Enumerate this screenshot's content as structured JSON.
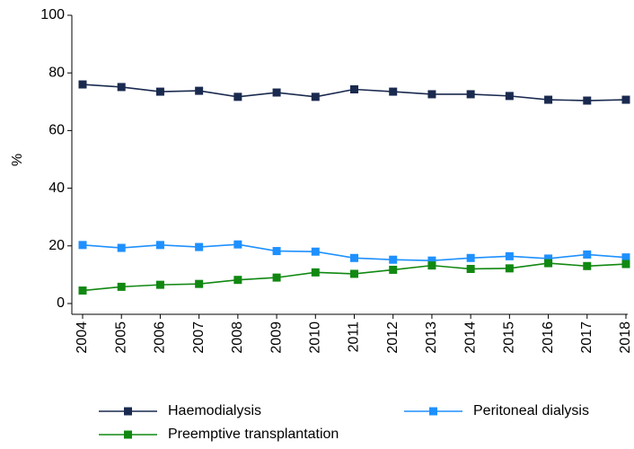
{
  "chart_data": {
    "type": "line",
    "y_label": "%",
    "x": [
      2004,
      2005,
      2006,
      2007,
      2008,
      2009,
      2010,
      2011,
      2012,
      2013,
      2014,
      2015,
      2016,
      2017,
      2018
    ],
    "xlim": [
      2004,
      2018
    ],
    "xticks": [
      2004,
      2005,
      2006,
      2007,
      2008,
      2009,
      2010,
      2011,
      2012,
      2013,
      2014,
      2015,
      2016,
      2017,
      2018
    ],
    "ylim": [
      0,
      100
    ],
    "yticks": [
      0,
      20,
      40,
      60,
      80,
      100
    ],
    "grid": false,
    "legend_position": "bottom",
    "series": [
      {
        "name": "Haemodialysis",
        "color": "#1a2a4f",
        "values": [
          76.0,
          75.1,
          73.5,
          73.8,
          71.7,
          73.2,
          71.7,
          74.3,
          73.5,
          72.6,
          72.6,
          72.0,
          70.7,
          70.4,
          70.7
        ]
      },
      {
        "name": "Peritoneal dialysis",
        "color": "#1e90ff",
        "values": [
          20.3,
          19.3,
          20.3,
          19.6,
          20.5,
          18.2,
          18.0,
          15.8,
          15.2,
          14.9,
          15.8,
          16.4,
          15.6,
          17.0,
          16.0
        ]
      },
      {
        "name": "Preemptive transplantation",
        "color": "#118811",
        "values": [
          4.5,
          5.8,
          6.5,
          6.8,
          8.2,
          9.0,
          10.8,
          10.3,
          11.7,
          13.2,
          12.0,
          12.2,
          14.0,
          13.0,
          13.7
        ]
      }
    ]
  }
}
